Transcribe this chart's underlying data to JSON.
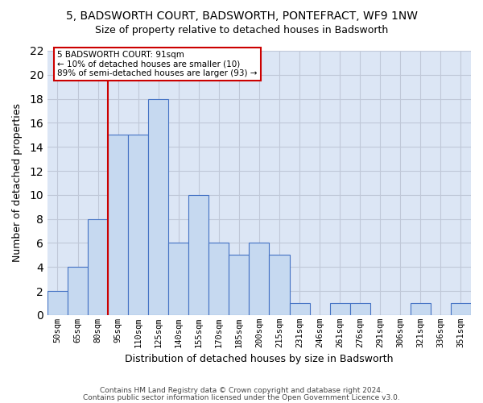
{
  "title": "5, BADSWORTH COURT, BADSWORTH, PONTEFRACT, WF9 1NW",
  "subtitle": "Size of property relative to detached houses in Badsworth",
  "xlabel": "Distribution of detached houses by size in Badsworth",
  "ylabel": "Number of detached properties",
  "categories": [
    "50sqm",
    "65sqm",
    "80sqm",
    "95sqm",
    "110sqm",
    "125sqm",
    "140sqm",
    "155sqm",
    "170sqm",
    "185sqm",
    "200sqm",
    "215sqm",
    "231sqm",
    "246sqm",
    "261sqm",
    "276sqm",
    "291sqm",
    "306sqm",
    "321sqm",
    "336sqm",
    "351sqm"
  ],
  "values": [
    2,
    4,
    8,
    15,
    15,
    18,
    6,
    10,
    6,
    5,
    6,
    5,
    1,
    0,
    1,
    1,
    0,
    0,
    1,
    0,
    1
  ],
  "bar_color": "#c6d9f0",
  "bar_edge_color": "#4472c4",
  "grid_color": "#c0c8d8",
  "background_color": "#dce6f5",
  "vline_color": "#cc0000",
  "vline_x_index": 2.5,
  "annotation_text": "5 BADSWORTH COURT: 91sqm\n← 10% of detached houses are smaller (10)\n89% of semi-detached houses are larger (93) →",
  "annotation_box_color": "#ffffff",
  "annotation_box_edge_color": "#cc0000",
  "ylim": [
    0,
    22
  ],
  "yticks": [
    0,
    2,
    4,
    6,
    8,
    10,
    12,
    14,
    16,
    18,
    20,
    22
  ],
  "footer1": "Contains HM Land Registry data © Crown copyright and database right 2024.",
  "footer2": "Contains public sector information licensed under the Open Government Licence v3.0."
}
